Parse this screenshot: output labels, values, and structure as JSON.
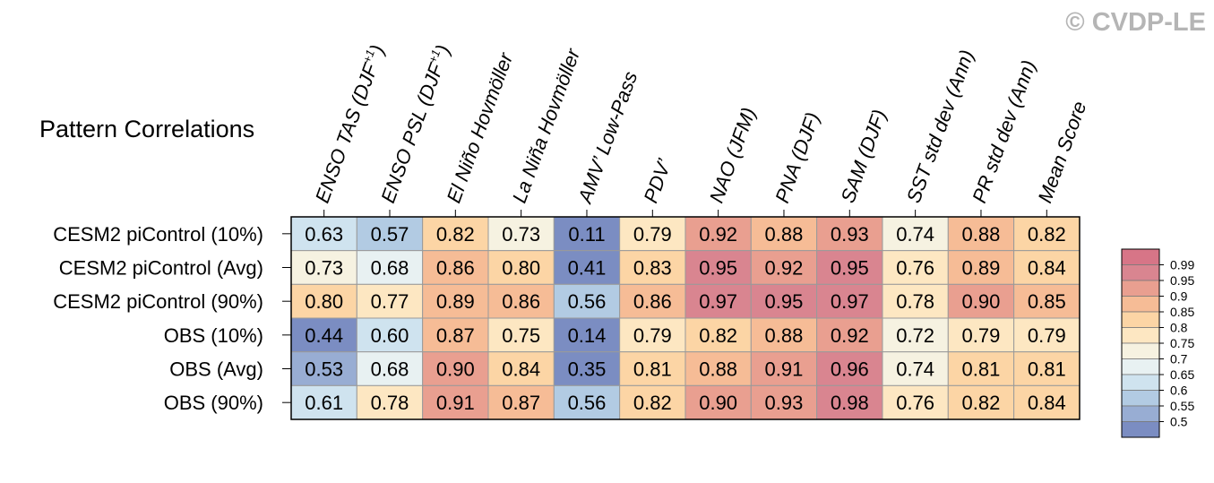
{
  "watermark": "© CVDP-LE",
  "chart_data": {
    "type": "heatmap",
    "title": "Pattern Correlations",
    "columns": [
      {
        "main": "ENSO TAS (DJF",
        "sup": "+1",
        "tail": ")"
      },
      {
        "main": "ENSO PSL (DJF",
        "sup": "+1",
        "tail": ")"
      },
      {
        "main": "El Niño Hovmöller"
      },
      {
        "main": "La Niña Hovmöller"
      },
      {
        "main": "AMV’ Low-Pass"
      },
      {
        "main": "PDV’"
      },
      {
        "main": "NAO (JFM)"
      },
      {
        "main": "PNA (DJF)"
      },
      {
        "main": "SAM (DJF)"
      },
      {
        "main": "SST std dev (Ann)"
      },
      {
        "main": "PR std dev (Ann)"
      },
      {
        "main": "Mean Score"
      }
    ],
    "rows": [
      "CESM2 piControl (10%)",
      "CESM2 piControl (Avg)",
      "CESM2 piControl (90%)",
      "OBS (10%)",
      "OBS (Avg)",
      "OBS (90%)"
    ],
    "values": [
      [
        "0.63",
        "0.57",
        "0.82",
        "0.73",
        "0.11",
        "0.79",
        "0.92",
        "0.88",
        "0.93",
        "0.74",
        "0.88",
        "0.82"
      ],
      [
        "0.73",
        "0.68",
        "0.86",
        "0.80",
        "0.41",
        "0.83",
        "0.95",
        "0.92",
        "0.95",
        "0.76",
        "0.89",
        "0.84"
      ],
      [
        "0.80",
        "0.77",
        "0.89",
        "0.86",
        "0.56",
        "0.86",
        "0.97",
        "0.95",
        "0.97",
        "0.78",
        "0.90",
        "0.85"
      ],
      [
        "0.44",
        "0.60",
        "0.87",
        "0.75",
        "0.14",
        "0.79",
        "0.82",
        "0.88",
        "0.92",
        "0.72",
        "0.79",
        "0.79"
      ],
      [
        "0.53",
        "0.68",
        "0.90",
        "0.84",
        "0.35",
        "0.81",
        "0.88",
        "0.91",
        "0.96",
        "0.74",
        "0.81",
        "0.81"
      ],
      [
        "0.61",
        "0.78",
        "0.91",
        "0.87",
        "0.56",
        "0.82",
        "0.90",
        "0.93",
        "0.98",
        "0.76",
        "0.82",
        "0.84"
      ]
    ],
    "colorbar": {
      "labels": [
        "0.99",
        "0.95",
        "0.9",
        "0.85",
        "0.8",
        "0.75",
        "0.7",
        "0.65",
        "0.6",
        "0.55",
        "0.5"
      ],
      "bounds": [
        0.5,
        0.55,
        0.6,
        0.65,
        0.7,
        0.75,
        0.8,
        0.85,
        0.9,
        0.95,
        0.99
      ],
      "colors": [
        "#7b8dc2",
        "#98add3",
        "#b2cbe3",
        "#cfe3ef",
        "#e8f1f2",
        "#f6f2e1",
        "#fde7c2",
        "#fcd5a5",
        "#f6bc96",
        "#e99f90",
        "#d98590",
        "#d77587"
      ]
    }
  }
}
